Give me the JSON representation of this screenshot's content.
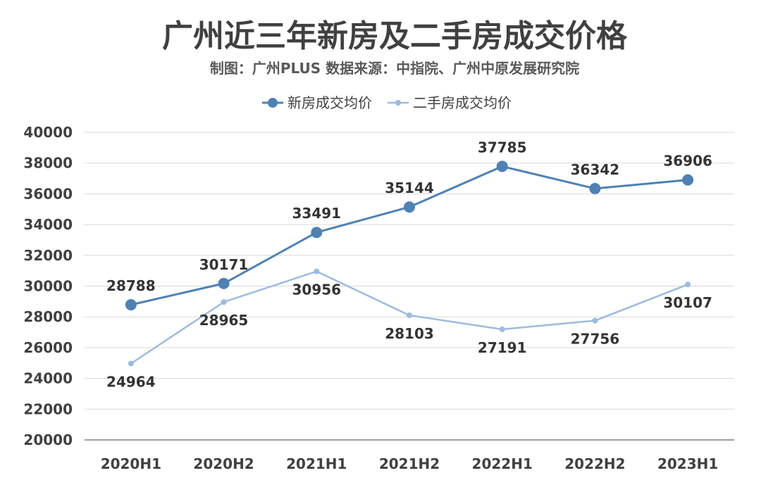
{
  "chart_data": {
    "type": "line",
    "title": "广州近三年新房及二手房成交价格",
    "subtitle": "制图：广州PLUS  数据来源：中指院、广州中原发展研究院",
    "categories": [
      "2020H1",
      "2020H2",
      "2021H1",
      "2021H2",
      "2022H1",
      "2022H2",
      "2023H1"
    ],
    "series": [
      {
        "name": "新房成交均价",
        "values": [
          28788,
          30171,
          33491,
          35144,
          37785,
          36342,
          36906
        ],
        "color": "#4f81b4",
        "label_position": "above"
      },
      {
        "name": "二手房成交均价",
        "values": [
          24964,
          28965,
          30956,
          28103,
          27191,
          27756,
          30107
        ],
        "color": "#9dbbe0",
        "label_position": "below"
      }
    ],
    "ylim": [
      20000,
      40000
    ],
    "yticks": [
      20000,
      22000,
      24000,
      26000,
      28000,
      30000,
      32000,
      34000,
      36000,
      38000,
      40000
    ],
    "grid": true,
    "legend_position": "top-center"
  }
}
